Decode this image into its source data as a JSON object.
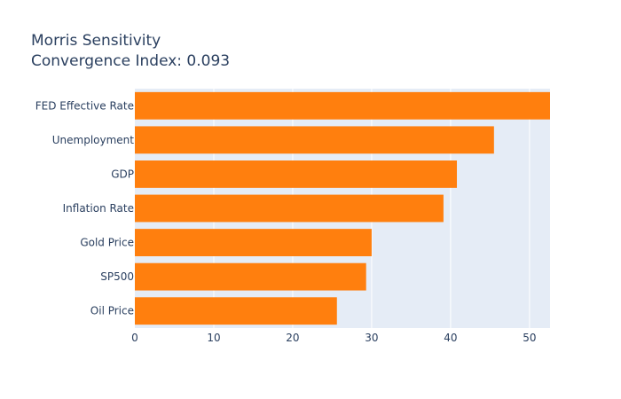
{
  "chart_data": {
    "type": "bar",
    "orientation": "horizontal",
    "title": "Morris Sensitivity",
    "subtitle": "Convergence Index: 0.093",
    "categories": [
      "FED Effective Rate",
      "Unemployment",
      "GDP",
      "Inflation Rate",
      "Gold Price",
      "SP500",
      "Oil Price"
    ],
    "values": [
      52.6,
      45.5,
      40.8,
      39.1,
      30.0,
      29.3,
      25.6
    ],
    "xlim": [
      0,
      52.6
    ],
    "xticks": [
      0,
      10,
      20,
      30,
      40,
      50
    ],
    "xlabel": "",
    "ylabel": "",
    "grid": true,
    "colors": {
      "bar": "#ff7f0e",
      "plot_background": "#e5ecf6",
      "grid": "#ffffff",
      "text": "#2a3f5f"
    }
  }
}
